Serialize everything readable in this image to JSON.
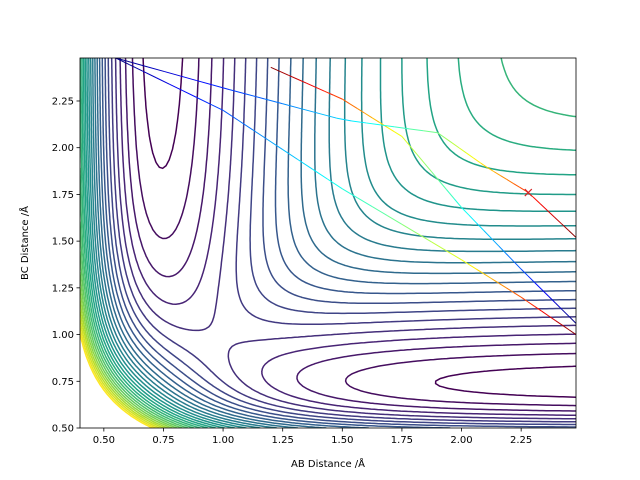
{
  "chart_data": {
    "type": "contour",
    "title": "",
    "xlabel": "AB Distance /Å",
    "ylabel": "BC Distance /Å",
    "xlim": [
      0.4,
      2.48
    ],
    "ylim": [
      0.5,
      2.48
    ],
    "xticks": [
      "0.50",
      "0.75",
      "1.00",
      "1.25",
      "1.50",
      "1.75",
      "2.00",
      "2.25"
    ],
    "xtick_values": [
      0.5,
      0.75,
      1.0,
      1.25,
      1.5,
      1.75,
      2.0,
      2.25
    ],
    "yticks": [
      "0.50",
      "0.75",
      "1.00",
      "1.25",
      "1.50",
      "1.75",
      "2.00",
      "2.25"
    ],
    "ytick_values": [
      0.5,
      0.75,
      1.0,
      1.25,
      1.5,
      1.75,
      2.0,
      2.25
    ],
    "colormap": "viridis",
    "grid": false,
    "legend": "none",
    "contour_levels": 30,
    "trajectories": [
      {
        "colormap": "jet-reversed",
        "points": [
          [
            1.2,
            2.43
          ],
          [
            1.5,
            2.26
          ],
          [
            1.75,
            2.06
          ],
          [
            2.0,
            1.68
          ],
          [
            2.25,
            1.35
          ],
          [
            2.48,
            1.06
          ]
        ]
      },
      {
        "colormap": "jet",
        "points": [
          [
            0.55,
            2.48
          ],
          [
            1.0,
            2.32
          ],
          [
            1.5,
            2.15
          ],
          [
            1.9,
            2.08
          ],
          [
            2.1,
            1.9
          ],
          [
            2.28,
            1.76
          ],
          [
            2.48,
            1.52
          ]
        ]
      },
      {
        "colormap": "jet",
        "points": [
          [
            0.55,
            2.48
          ],
          [
            1.0,
            2.2
          ],
          [
            1.5,
            1.78
          ],
          [
            2.0,
            1.4
          ],
          [
            2.25,
            1.2
          ],
          [
            2.48,
            1.0
          ]
        ]
      }
    ],
    "markers": [
      {
        "shape": "x",
        "color": "#d62728",
        "x": 2.28,
        "y": 1.76
      }
    ]
  }
}
